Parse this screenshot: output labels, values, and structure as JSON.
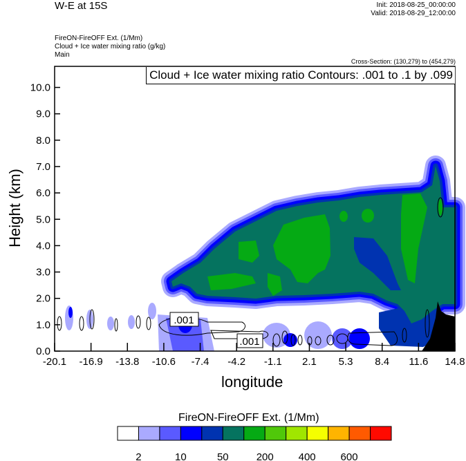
{
  "header": {
    "title": "W-E at 15S",
    "init": "Init: 2018-08-25_00:00:00",
    "valid": "Valid: 2018-08-29_12:00:00",
    "field_lines": [
      "FireON-FireOFF Ext.   (1/Mm)",
      "Cloud + Ice water mixing ratio   (g/kg)",
      "Main"
    ],
    "cross_section": "Cross-Section: (130,279) to (454,279)",
    "contour_info": "Cloud + Ice water mixing ratio Contours: .001 to .1 by .099"
  },
  "chart_data": {
    "type": "heatmap",
    "subtype": "vertical cross-section, filled contours with line contour overlay",
    "xlabel": "longitude",
    "ylabel": "Height (km)",
    "x_ticks": [
      "-20.1",
      "-16.9",
      "-13.8",
      "-10.6",
      "-7.4",
      "-4.2",
      "-1.1",
      "2.1",
      "5.3",
      "8.4",
      "11.6",
      "14.8"
    ],
    "xlim": [
      -20.1,
      14.8
    ],
    "y_ticks": [
      "0.0",
      "1.0",
      "2.0",
      "3.0",
      "4.0",
      "5.0",
      "6.0",
      "7.0",
      "8.0",
      "9.0",
      "10.0"
    ],
    "ylim": [
      0,
      10.8
    ],
    "contour_labels": [
      ".001",
      ".001"
    ],
    "colorbar": {
      "title": "FireON-FireOFF Ext.  (1/Mm)",
      "labels": [
        "2",
        "10",
        "50",
        "200",
        "400",
        "600"
      ],
      "colors": [
        "#ffffff",
        "#aaaaff",
        "#5a5aff",
        "#0000ff",
        "#0033b0",
        "#05735f",
        "#05aa14",
        "#50c80a",
        "#a0e600",
        "#f5ff00",
        "#ffb400",
        "#ff5a00",
        "#ff0a00"
      ]
    },
    "terrain_color": "#000000"
  }
}
